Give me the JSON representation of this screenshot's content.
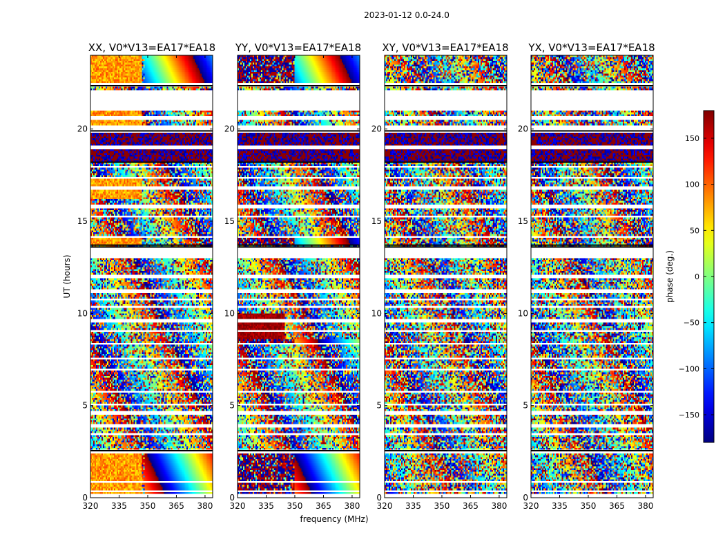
{
  "chart_data": {
    "type": "heatmap",
    "suptitle": "2023-01-12 0.0-24.0",
    "xlabel": "frequency (MHz)",
    "ylabel": "UT (hours)",
    "xlim": [
      320,
      384
    ],
    "ylim": [
      0,
      24
    ],
    "xticks": [
      320,
      335,
      350,
      365,
      380
    ],
    "yticks": [
      0,
      5,
      10,
      15,
      20
    ],
    "panels": [
      {
        "title": "XX, V0*V13=EA17*EA18",
        "pol": "XX"
      },
      {
        "title": "YY, V0*V13=EA17*EA18",
        "pol": "YY"
      },
      {
        "title": "XY, V0*V13=EA17*EA18",
        "pol": "XY"
      },
      {
        "title": "YX, V0*V13=EA17*EA18",
        "pol": "YX"
      }
    ],
    "colorbar": {
      "label": "phase (deg.)",
      "vmin": -180,
      "vmax": 180,
      "ticks": [
        -150,
        -100,
        -50,
        0,
        50,
        100,
        150
      ],
      "colormap": "jet"
    },
    "data_gaps_hours": [
      [
        0.05,
        0.15
      ],
      [
        0.3,
        0.38
      ],
      [
        0.8,
        0.9
      ],
      [
        1.05,
        1.12
      ],
      [
        1.45,
        1.55
      ],
      [
        2.4,
        2.55
      ],
      [
        2.95,
        3.05
      ],
      [
        3.4,
        3.5
      ],
      [
        3.85,
        3.95
      ],
      [
        4.55,
        4.7
      ],
      [
        5.0,
        5.1
      ],
      [
        5.75,
        5.85
      ],
      [
        6.35,
        6.45
      ],
      [
        6.9,
        7.0
      ],
      [
        7.5,
        7.6
      ],
      [
        8.3,
        8.4
      ],
      [
        9.0,
        9.1
      ],
      [
        9.55,
        9.65
      ],
      [
        10.3,
        10.4
      ],
      [
        10.65,
        10.75
      ],
      [
        11.15,
        11.25
      ],
      [
        11.95,
        12.05
      ],
      [
        13.0,
        13.6
      ],
      [
        14.1,
        14.2
      ],
      [
        15.2,
        15.3
      ],
      [
        15.75,
        15.85
      ],
      [
        16.75,
        16.85
      ],
      [
        17.3,
        17.4
      ],
      [
        17.9,
        18.0
      ],
      [
        18.95,
        19.05
      ],
      [
        19.85,
        20.15
      ],
      [
        20.5,
        20.65
      ],
      [
        21.0,
        22.1
      ],
      [
        22.35,
        22.45
      ]
    ]
  }
}
